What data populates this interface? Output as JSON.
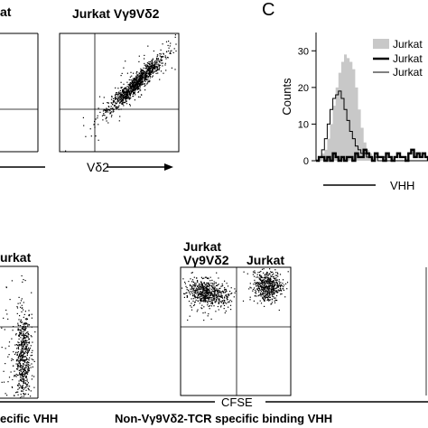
{
  "panel_letter": "C",
  "top_left_plot": {
    "title_visible": "at",
    "axis_label": "Vδ2"
  },
  "top_mid_plot": {
    "title": "Jurkat Vγ9Vδ2"
  },
  "histogram": {
    "ylabel": "Counts",
    "xlabel": "VHH",
    "legend": [
      "Jurkat",
      "Jurkat",
      "Jurkat"
    ],
    "legend_styles": [
      "filled-grey",
      "thick-black",
      "thin-black"
    ],
    "colors": {
      "filled": "#c8c8c8",
      "line": "#000000"
    }
  },
  "bottom_left_plot": {
    "title_visible": "urkat",
    "caption_visible": "ecific VHH"
  },
  "bottom_mid_plot": {
    "title_line1": "Jurkat",
    "title_line2": "Vγ9Vδ2",
    "title_right": "Jurkat",
    "xlabel": "CFSE",
    "caption": "Non-Vγ9Vδ2-TCR specific binding VHH"
  },
  "chart_data": [
    {
      "type": "histogram",
      "xlabel": "VHH",
      "ylabel": "Counts",
      "ylim": [
        0,
        35
      ],
      "yticks": [
        0,
        10,
        20,
        30
      ],
      "legend_placement": "top-right",
      "series": [
        {
          "name": "Jurkat",
          "style": "filled-grey",
          "values": [
            0,
            1,
            2,
            3,
            6,
            10,
            15,
            20,
            24,
            27,
            29,
            28,
            27,
            25,
            20,
            14,
            9,
            5,
            3,
            2,
            1,
            0,
            0,
            0,
            0,
            0,
            0,
            0,
            0,
            0,
            0,
            0,
            0,
            0,
            0,
            0,
            0,
            0,
            0,
            0
          ]
        },
        {
          "name": "Jurkat",
          "style": "thick-black",
          "values": [
            0,
            1,
            1,
            0,
            1,
            0,
            2,
            1,
            0,
            1,
            0,
            1,
            1,
            0,
            2,
            1,
            1,
            3,
            2,
            1,
            0,
            2,
            1,
            1,
            0,
            2,
            1,
            0,
            1,
            2,
            1,
            1,
            0,
            2,
            3,
            1,
            2,
            1,
            2,
            1
          ]
        },
        {
          "name": "Jurkat",
          "style": "thin-black",
          "values": [
            0,
            1,
            3,
            6,
            10,
            14,
            17,
            18,
            19,
            17,
            14,
            11,
            8,
            6,
            4,
            3,
            2,
            2,
            1,
            1,
            0,
            1,
            0,
            0,
            1,
            0,
            0,
            0,
            0,
            0,
            0,
            0,
            0,
            0,
            0,
            0,
            0,
            0,
            0,
            0
          ]
        }
      ]
    }
  ]
}
